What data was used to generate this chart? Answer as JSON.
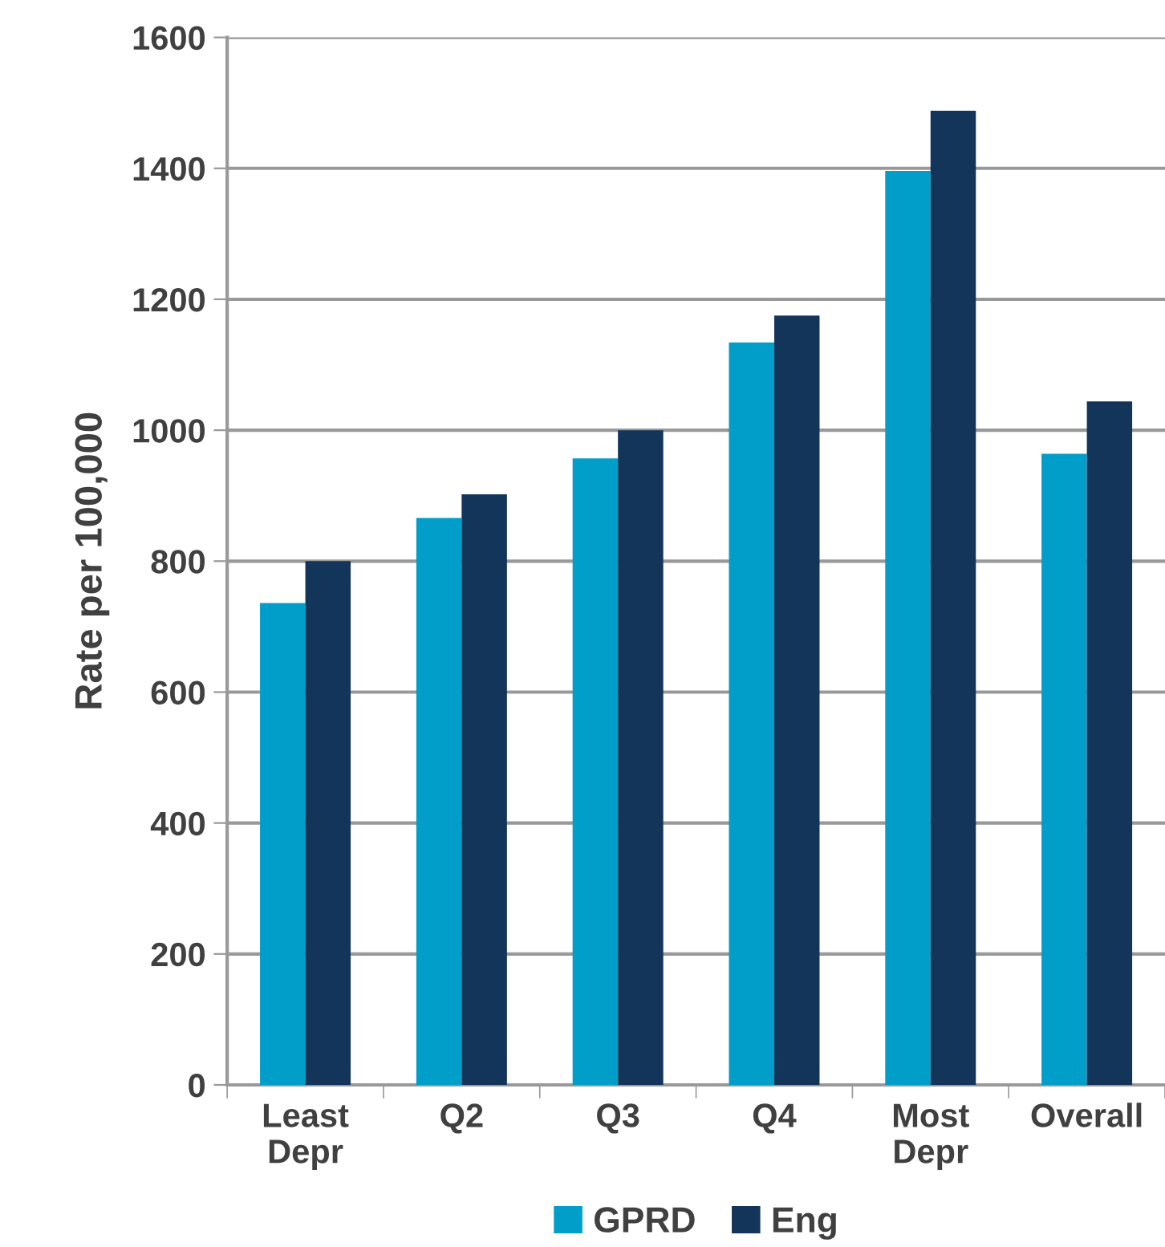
{
  "chart_data": {
    "type": "bar",
    "ylabel": "Rate per 100,000",
    "categories": [
      "Least\nDepr",
      "Q2",
      "Q3",
      "Q4",
      "Most\nDepr",
      "Overall"
    ],
    "series": [
      {
        "name": "GPRD",
        "color": "#009ec8",
        "values": [
          736,
          866,
          957,
          1134,
          1396,
          964
        ]
      },
      {
        "name": "Eng",
        "color": "#14355a",
        "values": [
          800,
          902,
          1000,
          1175,
          1488,
          1044
        ]
      }
    ],
    "ylim": [
      0,
      1600
    ],
    "yticks": [
      0,
      200,
      400,
      600,
      800,
      1000,
      1200,
      1400,
      1600
    ],
    "grid": "y",
    "legend": "bottom"
  }
}
